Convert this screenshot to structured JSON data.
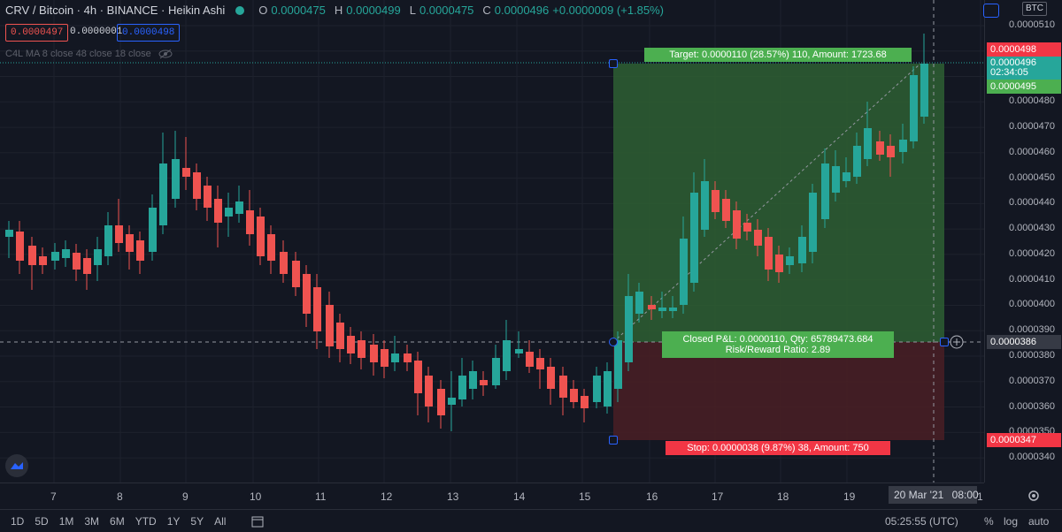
{
  "legend": {
    "symbol": "CRV / Bitcoin · 4h · BINANCE · Heikin Ashi",
    "o_label": "O",
    "o": "0.0000475",
    "h_label": "H",
    "h": "0.0000499",
    "l_label": "L",
    "l": "0.0000475",
    "c_label": "C",
    "c": "0.0000496",
    "change": "+0.0000009 (+1.85%)"
  },
  "price_boxes": {
    "sell": "0.0000497",
    "spread": "0.0000001",
    "buy": "0.0000498"
  },
  "indicator": "C4L MA 8 close 48 close 18 close",
  "price_axis": {
    "ticks": [
      "0.0000510",
      "0.0000500",
      "0.0000490",
      "0.0000480",
      "0.0000470",
      "0.0000460",
      "0.0000450",
      "0.0000440",
      "0.0000430",
      "0.0000420",
      "0.0000410",
      "0.0000400",
      "0.0000390",
      "0.0000380",
      "0.0000370",
      "0.0000360",
      "0.0000350",
      "0.0000340"
    ],
    "currency": "BTC",
    "tag_target": "0.0000498",
    "tag_current": "0.0000496",
    "countdown": "02:34:05",
    "tag_entry_high": "0.0000495",
    "tag_crosshair": "0.0000386",
    "tag_stop": "0.0000347"
  },
  "position": {
    "target_text": "Target: 0.0000110 (28.57%) 110, Amount: 1723.68",
    "closed_text": "Closed P&L: 0.0000110, Qty: 65789473.684",
    "rr_text": "Risk/Reward Ratio: 2.89",
    "stop_text": "Stop: 0.0000038 (9.87%) 38, Amount: 750"
  },
  "time_axis": {
    "labels": [
      "7",
      "8",
      "9",
      "10",
      "11",
      "12",
      "13",
      "14",
      "15",
      "16",
      "17",
      "18",
      "19",
      "1"
    ],
    "crosshair_date": "20 Mar '21",
    "crosshair_time": "08:00"
  },
  "bottom_bar": {
    "timeframes": [
      "1D",
      "5D",
      "1M",
      "3M",
      "6M",
      "YTD",
      "1Y",
      "5Y",
      "All"
    ],
    "clock": "05:25:55 (UTC)",
    "percent": "%",
    "log": "log",
    "auto": "auto"
  },
  "colors": {
    "up": "#26a69a",
    "down": "#ef5350",
    "target_zone": "#2e5f32",
    "stop_zone": "#4a1f25",
    "target_tag": "#4caf50",
    "stop_tag": "#f23645",
    "brand": "#2962ff"
  }
}
